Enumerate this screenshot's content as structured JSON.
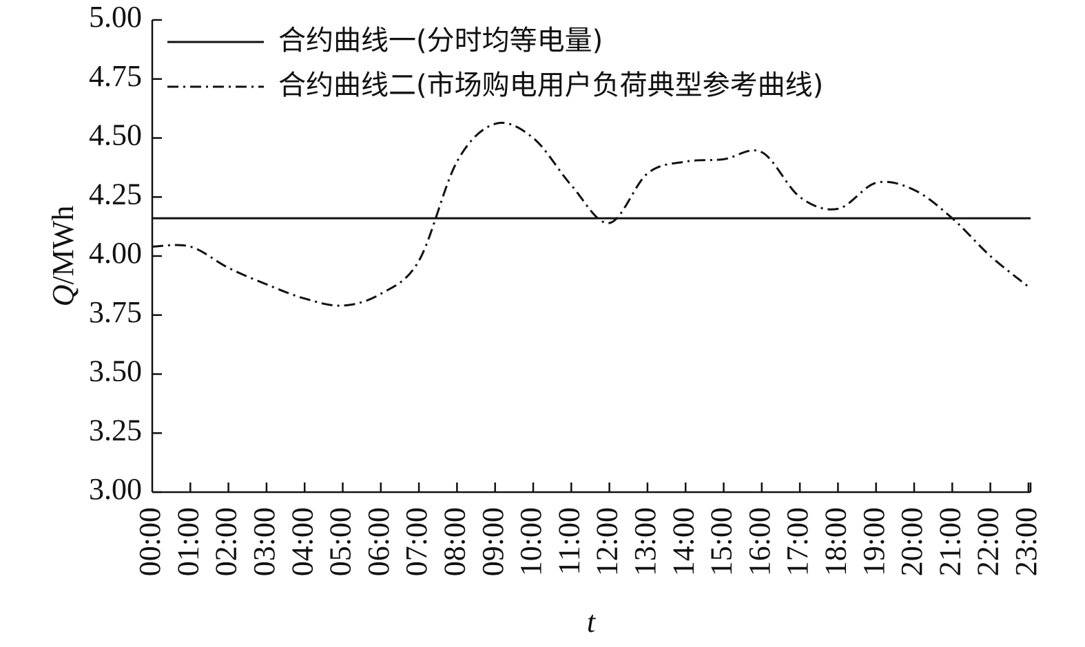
{
  "chart_data": {
    "type": "line",
    "x": [
      "00:00",
      "01:00",
      "02:00",
      "03:00",
      "04:00",
      "05:00",
      "06:00",
      "07:00",
      "08:00",
      "09:00",
      "10:00",
      "11:00",
      "12:00",
      "13:00",
      "14:00",
      "15:00",
      "16:00",
      "17:00",
      "18:00",
      "19:00",
      "20:00",
      "21:00",
      "22:00",
      "23:00"
    ],
    "series": [
      {
        "name": "合约曲线一(分时均等电量)",
        "style": "solid",
        "color": "#111111",
        "values": [
          4.16,
          4.16,
          4.16,
          4.16,
          4.16,
          4.16,
          4.16,
          4.16,
          4.16,
          4.16,
          4.16,
          4.16,
          4.16,
          4.16,
          4.16,
          4.16,
          4.16,
          4.16,
          4.16,
          4.16,
          4.16,
          4.16,
          4.16,
          4.16
        ]
      },
      {
        "name": "合约曲线二(市场购电用户负荷典型参考曲线)",
        "style": "dash-dot",
        "color": "#111111",
        "values": [
          4.04,
          4.04,
          3.95,
          3.88,
          3.82,
          3.79,
          3.84,
          3.98,
          4.4,
          4.56,
          4.5,
          4.3,
          4.14,
          4.35,
          4.4,
          4.41,
          4.44,
          4.25,
          4.2,
          4.31,
          4.28,
          4.16,
          4.0,
          3.87
        ]
      }
    ],
    "xlabel": "t",
    "ylabel_main": "Q",
    "ylabel_unit": "/MWh",
    "ylim": [
      3.0,
      5.0
    ],
    "yticks": [
      "3.00",
      "3.25",
      "3.50",
      "3.75",
      "4.00",
      "4.25",
      "4.50",
      "4.75",
      "5.00"
    ],
    "grid": false,
    "legend_position": "top-left"
  }
}
